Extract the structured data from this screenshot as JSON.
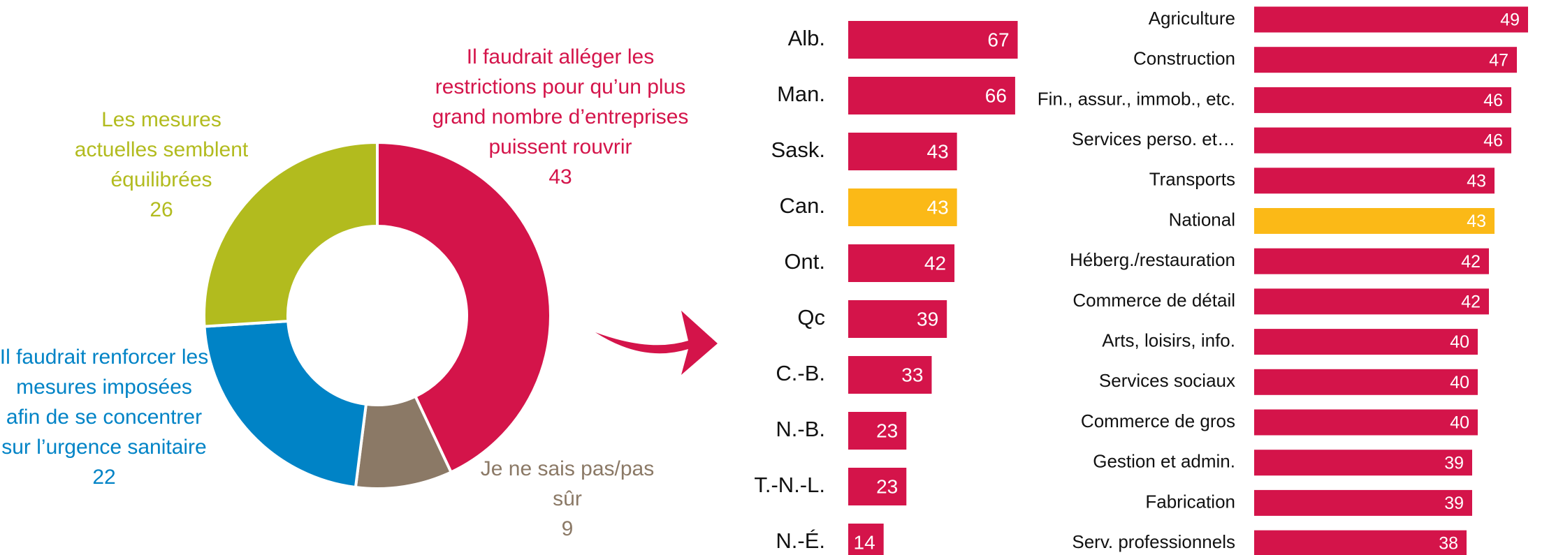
{
  "chart_data": [
    {
      "type": "donut",
      "categories": [
        "Il faudrait alléger les restrictions pour qu’un plus grand nombre d’entreprises puissent rouvrir",
        "Je ne sais pas/pas sûr",
        "Il faudrait renforcer les mesures imposées afin de se concentrer sur l’urgence sanitaire",
        "Les mesures actuelles semblent équilibrées"
      ],
      "values": [
        43,
        9,
        22,
        26
      ],
      "colors": [
        "#d4144a",
        "#8b7966",
        "#0083c6",
        "#b2bb1e"
      ]
    },
    {
      "type": "bar",
      "categories": [
        "Alb.",
        "Man.",
        "Sask.",
        "Can.",
        "Ont.",
        "Qc",
        "C.-B.",
        "N.-B.",
        "T.-N.-L.",
        "N.-É."
      ],
      "values": [
        67,
        66,
        43,
        43,
        42,
        39,
        33,
        23,
        23,
        14
      ],
      "colors": [
        "#d4144a",
        "#d4144a",
        "#d4144a",
        "#fbb917",
        "#d4144a",
        "#d4144a",
        "#d4144a",
        "#d4144a",
        "#d4144a",
        "#d4144a"
      ]
    },
    {
      "type": "bar",
      "categories": [
        "Agriculture",
        "Construction",
        "Fin., assur., immob., etc.",
        "Services perso. et…",
        "Transports",
        "National",
        "Héberg./restauration",
        "Commerce de détail",
        "Arts, loisirs, info.",
        "Services sociaux",
        "Commerce de gros",
        "Gestion et admin.",
        "Fabrication",
        "Serv. professionnels"
      ],
      "values": [
        49,
        47,
        46,
        46,
        43,
        43,
        42,
        42,
        40,
        40,
        40,
        39,
        39,
        38
      ],
      "colors": [
        "#d4144a",
        "#d4144a",
        "#d4144a",
        "#d4144a",
        "#d4144a",
        "#fbb917",
        "#d4144a",
        "#d4144a",
        "#d4144a",
        "#d4144a",
        "#d4144a",
        "#d4144a",
        "#d4144a",
        "#d4144a"
      ]
    }
  ]
}
